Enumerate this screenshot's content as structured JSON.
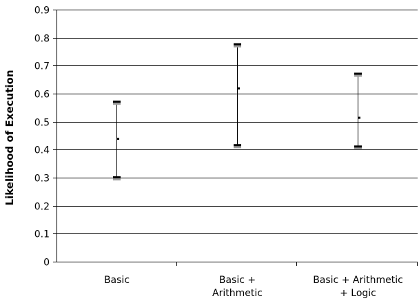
{
  "chart_data": {
    "type": "error-bar",
    "title": "",
    "xlabel": "",
    "ylabel": "Likelihood of Execution",
    "ylim": [
      0,
      0.9
    ],
    "yticks": [
      0,
      0.1,
      0.2,
      0.3,
      0.4,
      0.5,
      0.6,
      0.7,
      0.8,
      0.9
    ],
    "ytick_labels": [
      "0",
      "0.1",
      "0.2",
      "0.3",
      "0.4",
      "0.5",
      "0.6",
      "0.7",
      "0.8",
      "0.9"
    ],
    "grid": true,
    "categories": [
      {
        "label_lines": [
          "Basic"
        ],
        "low": 0.3,
        "mid": 0.44,
        "high": 0.57
      },
      {
        "label_lines": [
          "Basic +",
          "Arithmetic"
        ],
        "low": 0.415,
        "mid": 0.62,
        "high": 0.775
      },
      {
        "label_lines": [
          "Basic + Arithmetic",
          "+ Logic"
        ],
        "low": 0.41,
        "mid": 0.515,
        "high": 0.67
      }
    ],
    "colors": {
      "line": "#000000",
      "cap_shadow": "#9e9e9e",
      "grid": "#000000"
    }
  }
}
